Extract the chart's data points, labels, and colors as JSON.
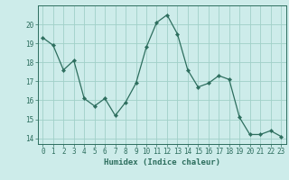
{
  "x": [
    0,
    1,
    2,
    3,
    4,
    5,
    6,
    7,
    8,
    9,
    10,
    11,
    12,
    13,
    14,
    15,
    16,
    17,
    18,
    19,
    20,
    21,
    22,
    23
  ],
  "y": [
    19.3,
    18.9,
    17.6,
    18.1,
    16.1,
    15.7,
    16.1,
    15.2,
    15.9,
    16.9,
    18.8,
    20.1,
    20.5,
    19.5,
    17.6,
    16.7,
    16.9,
    17.3,
    17.1,
    15.1,
    14.2,
    14.2,
    14.4,
    14.1
  ],
  "line_color": "#2d6e5e",
  "marker": "D",
  "marker_size": 2.2,
  "bg_color": "#cdecea",
  "grid_color": "#a0d0c8",
  "xlabel": "Humidex (Indice chaleur)",
  "ylim": [
    13.7,
    21.0
  ],
  "xlim": [
    -0.5,
    23.5
  ],
  "yticks": [
    14,
    15,
    16,
    17,
    18,
    19,
    20
  ],
  "xticks": [
    0,
    1,
    2,
    3,
    4,
    5,
    6,
    7,
    8,
    9,
    10,
    11,
    12,
    13,
    14,
    15,
    16,
    17,
    18,
    19,
    20,
    21,
    22,
    23
  ],
  "tick_fontsize": 5.5,
  "xlabel_fontsize": 6.5,
  "axis_color": "#2d6e5e",
  "linewidth": 0.9
}
